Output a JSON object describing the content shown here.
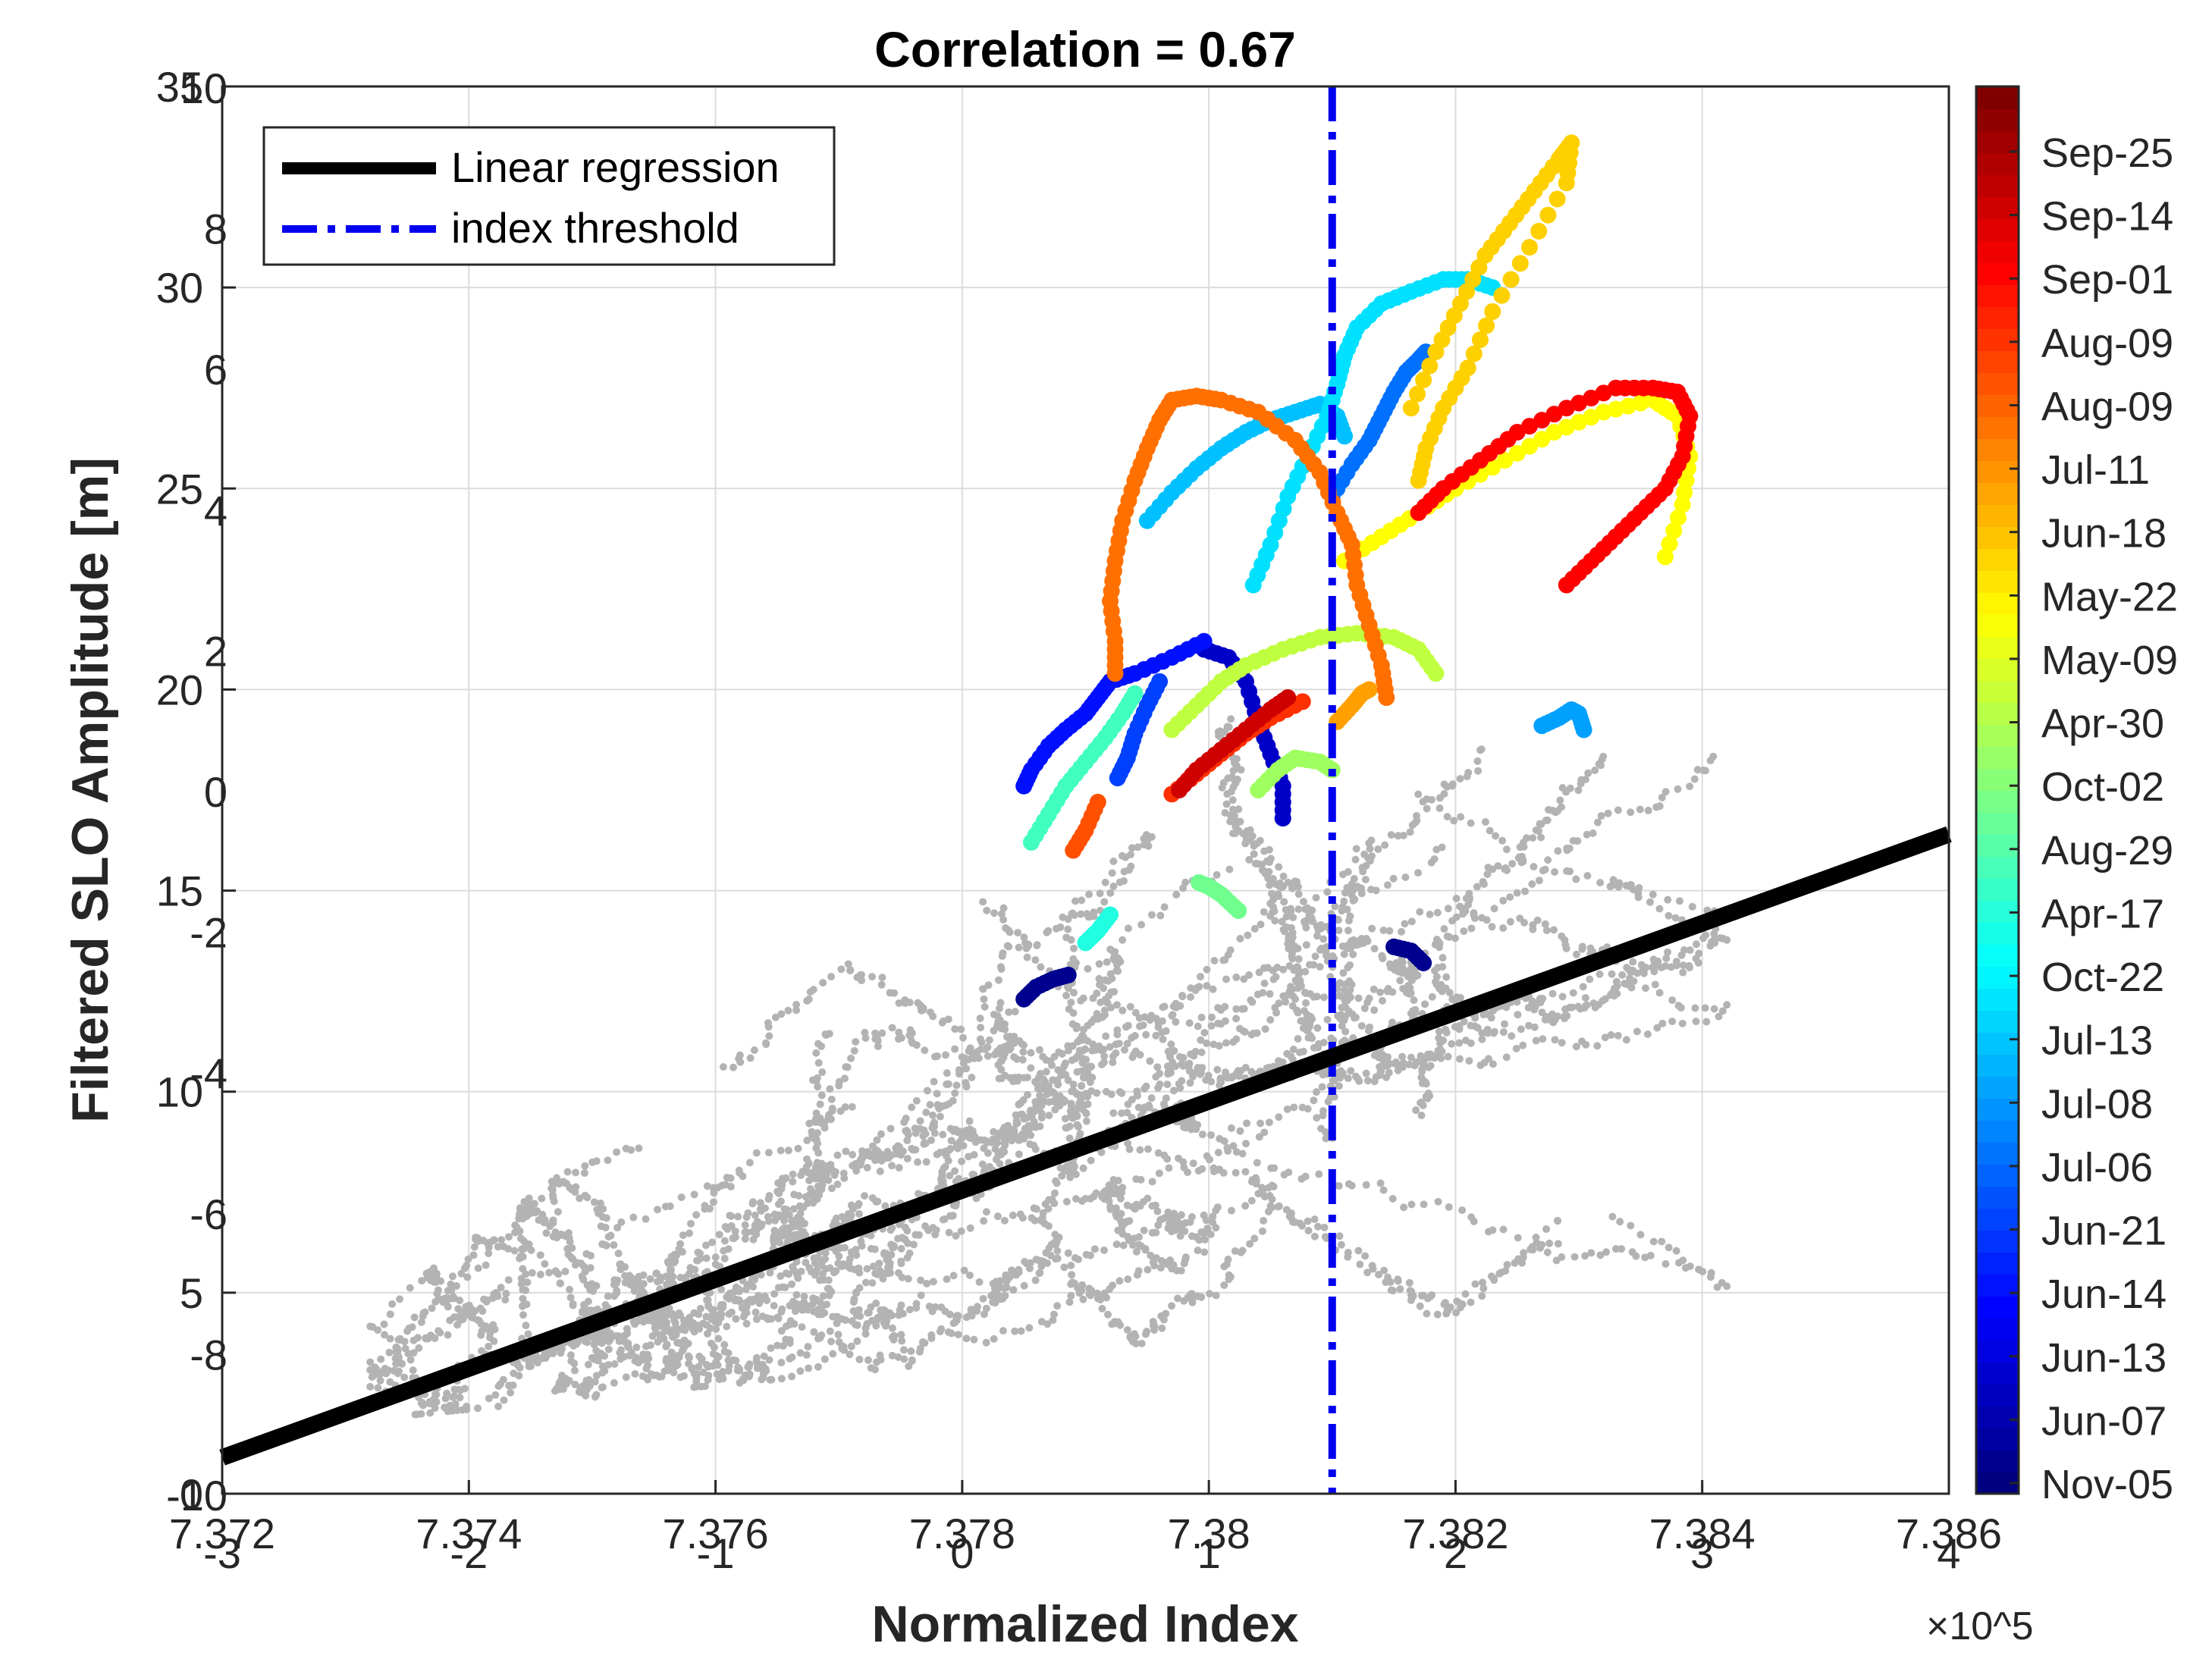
{
  "chart_data": {
    "type": "scatter",
    "title": "Correlation = 0.67",
    "xlabel": "Normalized Index",
    "ylabel": "Filtered SLO Amplitude [m]",
    "xlim": [
      -3,
      4
    ],
    "ylim": [
      0,
      35
    ],
    "x_ticks": [
      -3,
      -2,
      -1,
      0,
      1,
      2,
      3,
      4
    ],
    "y_ticks": [
      0,
      5,
      10,
      15,
      20,
      25,
      30,
      35
    ],
    "overlay_x_ticks": [
      "7.372",
      "7.374",
      "7.376",
      "7.378",
      "7.38",
      "7.382",
      "7.384",
      "7.386"
    ],
    "overlay_x_exponent": "×10^5",
    "overlay_y_ticks": [
      "-10",
      "-8",
      "-6",
      "-4",
      "-2",
      "0",
      "2",
      "4",
      "6",
      "8",
      "10"
    ],
    "grid": true,
    "legend": {
      "placement": "top-left",
      "entries": [
        {
          "label": "Linear regression",
          "color": "#000000",
          "style": "solid"
        },
        {
          "label": "index threshold",
          "color": "#0000ee",
          "style": "dash-dot"
        }
      ]
    },
    "regression_line": {
      "x": [
        -3,
        4
      ],
      "y": [
        0.9,
        16.4
      ],
      "color": "#000000"
    },
    "threshold_x": 1.5,
    "background_color": "#b3b3b3",
    "colorbar": {
      "labels": [
        "Sep-25",
        "Sep-14",
        "Sep-01",
        "Aug-09",
        "Aug-09",
        "Jul-11",
        "Jun-18",
        "May-22",
        "May-09",
        "Apr-30",
        "Oct-02",
        "Aug-29",
        "Apr-17",
        "Oct-22",
        "Jul-13",
        "Jul-08",
        "Jul-06",
        "Jun-21",
        "Jun-14",
        "Jun-13",
        "Jun-07",
        "Nov-05"
      ],
      "colormap": "jet"
    },
    "series": [
      {
        "label": "Nov-05",
        "color": "#00008f",
        "x": [
          0.25,
          0.3,
          0.37,
          0.43
        ],
        "y": [
          12.3,
          12.6,
          12.8,
          12.9
        ]
      },
      {
        "label": "Nov-05 (b)",
        "color": "#00008f",
        "x": [
          1.75,
          1.82,
          1.87
        ],
        "y": [
          13.6,
          13.5,
          13.2
        ]
      },
      {
        "label": "Jun-07",
        "color": "#0000c9",
        "x": [
          0.98,
          1.08,
          1.15,
          1.2,
          1.25,
          1.3,
          1.3
        ],
        "y": [
          21.0,
          20.8,
          20.2,
          19.2,
          18.4,
          17.6,
          16.8
        ]
      },
      {
        "label": "Jun-13",
        "color": "#0010ff",
        "x": [
          0.98,
          0.85,
          0.7,
          0.6,
          0.55,
          0.5,
          0.42,
          0.35,
          0.28,
          0.25
        ],
        "y": [
          21.2,
          20.8,
          20.4,
          20.2,
          19.8,
          19.4,
          19.0,
          18.6,
          18.0,
          17.6
        ]
      },
      {
        "label": "Jun-14",
        "color": "#0040ff",
        "x": [
          0.8,
          0.75,
          0.7,
          0.67,
          0.63
        ],
        "y": [
          20.2,
          19.6,
          18.9,
          18.3,
          17.8
        ]
      },
      {
        "label": "Jun-21",
        "color": "#0070ff",
        "x": [
          1.5,
          1.58,
          1.65,
          1.7,
          1.75,
          1.8,
          1.85,
          1.88
        ],
        "y": [
          24.8,
          25.6,
          26.2,
          26.8,
          27.4,
          27.9,
          28.2,
          28.4
        ]
      },
      {
        "label": "Jul-06",
        "color": "#00a0ff",
        "x": [
          2.35,
          2.42,
          2.47,
          2.5,
          2.52
        ],
        "y": [
          19.1,
          19.3,
          19.5,
          19.4,
          19.0
        ]
      },
      {
        "label": "Jul-08",
        "color": "#00c0ff",
        "x": [
          0.75,
          0.85,
          0.95,
          1.05,
          1.15,
          1.25,
          1.35,
          1.45,
          1.52,
          1.55
        ],
        "y": [
          24.2,
          24.9,
          25.5,
          26.0,
          26.4,
          26.7,
          26.9,
          27.1,
          26.8,
          26.3
        ]
      },
      {
        "label": "Jul-13",
        "color": "#00e0ff",
        "x": [
          1.18,
          1.25,
          1.32,
          1.4,
          1.48,
          1.52,
          1.55,
          1.6,
          1.7,
          1.82,
          1.95,
          2.05,
          2.15
        ],
        "y": [
          22.6,
          23.6,
          24.8,
          25.8,
          26.8,
          27.6,
          28.3,
          29.0,
          29.6,
          29.9,
          30.2,
          30.2,
          30.0
        ]
      },
      {
        "label": "Apr-17",
        "color": "#20ffdf",
        "x": [
          0.5,
          0.55,
          0.6
        ],
        "y": [
          13.7,
          14.0,
          14.4
        ]
      },
      {
        "label": "Aug-29",
        "color": "#40ffbf",
        "x": [
          0.28,
          0.35,
          0.42,
          0.5,
          0.58,
          0.65,
          0.7
        ],
        "y": [
          16.2,
          16.9,
          17.6,
          18.2,
          18.8,
          19.4,
          19.9
        ]
      },
      {
        "label": "Oct-02",
        "color": "#70ff8f",
        "x": [
          0.96,
          1.0,
          1.05,
          1.12
        ],
        "y": [
          15.2,
          15.1,
          14.9,
          14.5
        ]
      },
      {
        "label": "Apr-30",
        "color": "#a0ff60",
        "x": [
          1.2,
          1.28,
          1.35,
          1.45,
          1.5
        ],
        "y": [
          17.5,
          18.0,
          18.3,
          18.2,
          18.0
        ]
      },
      {
        "label": "May-09",
        "color": "#c0ff40",
        "x": [
          0.85,
          0.95,
          1.05,
          1.15,
          1.3,
          1.45,
          1.6,
          1.75,
          1.85,
          1.92
        ],
        "y": [
          19.0,
          19.6,
          20.2,
          20.6,
          21.0,
          21.3,
          21.4,
          21.3,
          21.0,
          20.4
        ]
      },
      {
        "label": "May-22",
        "color": "#ffff00",
        "x": [
          1.55,
          1.7,
          1.85,
          2.0,
          2.2,
          2.4,
          2.6,
          2.8,
          2.9,
          2.95,
          2.92,
          2.85
        ],
        "y": [
          23.2,
          23.8,
          24.4,
          25.0,
          25.7,
          26.4,
          26.9,
          27.2,
          26.8,
          25.8,
          24.6,
          23.3
        ]
      },
      {
        "label": "Jun-18",
        "color": "#ffd000",
        "x": [
          1.82,
          1.92,
          2.02,
          2.12,
          2.22,
          2.32,
          2.42,
          2.47,
          2.45,
          2.3,
          2.15,
          2.05,
          1.95,
          1.88,
          1.85
        ],
        "y": [
          27.0,
          28.4,
          29.6,
          30.8,
          31.6,
          32.4,
          33.2,
          33.6,
          32.6,
          31.0,
          29.4,
          28.0,
          27.0,
          26.0,
          25.2
        ]
      },
      {
        "label": "Jul-11",
        "color": "#ffa000",
        "x": [
          1.52,
          1.58,
          1.62,
          1.65
        ],
        "y": [
          19.2,
          19.6,
          19.9,
          20.0
        ]
      },
      {
        "label": "Aug-09",
        "color": "#ff7000",
        "x": [
          1.72,
          1.7,
          1.65,
          1.6,
          1.58,
          1.52,
          1.45,
          1.35,
          1.2,
          1.05,
          0.95,
          0.85,
          0.8,
          0.75,
          0.7,
          0.65,
          0.62,
          0.6,
          0.62,
          0.62
        ],
        "y": [
          19.8,
          20.6,
          21.6,
          22.6,
          23.6,
          24.4,
          25.4,
          26.2,
          26.9,
          27.2,
          27.3,
          27.2,
          26.7,
          26.0,
          25.2,
          24.2,
          23.2,
          22.2,
          21.2,
          20.4
        ]
      },
      {
        "label": "Aug-09 (b)",
        "color": "#ff5000",
        "x": [
          0.45,
          0.5,
          0.55
        ],
        "y": [
          16.0,
          16.5,
          17.2
        ]
      },
      {
        "label": "Sep-01",
        "color": "#ff3000",
        "x": [
          0.85,
          0.95,
          1.05,
          1.15,
          1.25,
          1.38
        ],
        "y": [
          17.4,
          17.9,
          18.4,
          18.9,
          19.3,
          19.7
        ]
      },
      {
        "label": "Sep-14",
        "color": "#ff0000",
        "x": [
          1.85,
          1.95,
          2.1,
          2.25,
          2.45,
          2.65,
          2.8,
          2.9,
          2.95,
          2.92,
          2.85,
          2.75,
          2.65,
          2.55,
          2.45
        ],
        "y": [
          24.4,
          25.0,
          25.7,
          26.4,
          27.0,
          27.5,
          27.5,
          27.4,
          26.8,
          25.8,
          25.0,
          24.4,
          23.8,
          23.2,
          22.6
        ]
      },
      {
        "label": "Sep-25",
        "color": "#cf0000",
        "x": [
          0.88,
          0.95,
          1.05,
          1.15,
          1.25,
          1.32
        ],
        "y": [
          17.5,
          18.0,
          18.5,
          19.0,
          19.5,
          19.8
        ]
      }
    ]
  }
}
